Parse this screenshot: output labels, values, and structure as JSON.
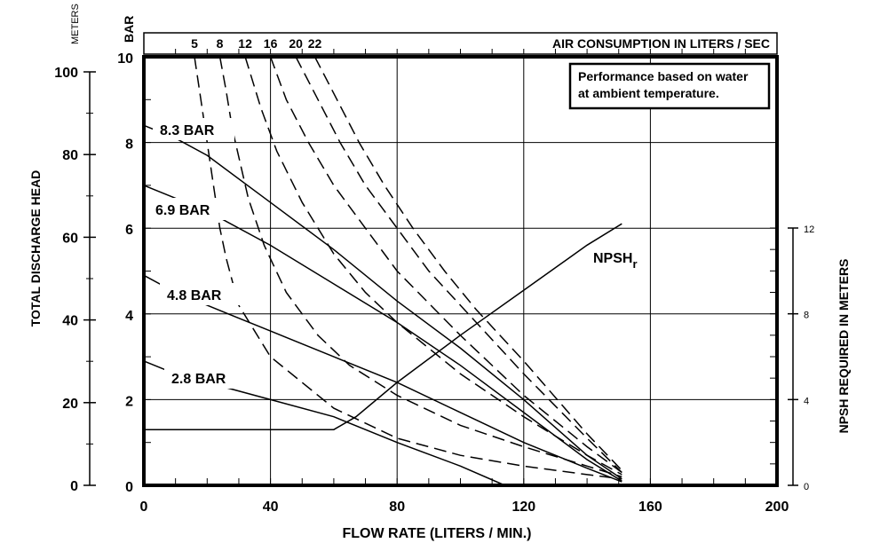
{
  "chart_data": {
    "type": "line",
    "title": "AIR CONSUMPTION IN LITERS / SEC",
    "note_lines": [
      "Performance based on water",
      "at ambient temperature."
    ],
    "xlabel": "FLOW RATE (LITERS / MIN.)",
    "xlim": [
      0,
      200
    ],
    "x_ticks": [
      0,
      40,
      80,
      120,
      160,
      200
    ],
    "y_bar": {
      "label": "BAR",
      "lim": [
        0,
        10
      ],
      "ticks": [
        0,
        2,
        4,
        6,
        8,
        10
      ]
    },
    "y_meters": {
      "unit_label": "METERS",
      "axis_label": "TOTAL DISCHARGE HEAD",
      "lim": [
        0,
        100
      ],
      "ticks": [
        0,
        20,
        40,
        60,
        80,
        100
      ]
    },
    "y_npsh": {
      "axis_label": "NPSH REQUIRED IN METERS",
      "lim": [
        0,
        12
      ],
      "ticks": [
        0,
        4,
        8,
        12
      ]
    },
    "air_top_ticks": [
      "5",
      "8",
      "12",
      "16",
      "20",
      "22"
    ],
    "pressure_series": [
      {
        "name": "8.3 BAR",
        "points": [
          [
            0,
            8.4
          ],
          [
            10,
            8.1
          ],
          [
            20,
            7.7
          ],
          [
            40,
            6.6
          ],
          [
            60,
            5.5
          ],
          [
            80,
            4.3
          ],
          [
            100,
            3.2
          ],
          [
            120,
            2.0
          ],
          [
            140,
            0.7
          ],
          [
            151,
            0.15
          ]
        ]
      },
      {
        "name": "6.9 BAR",
        "points": [
          [
            0,
            7.0
          ],
          [
            10,
            6.7
          ],
          [
            20,
            6.4
          ],
          [
            40,
            5.6
          ],
          [
            60,
            4.7
          ],
          [
            80,
            3.8
          ],
          [
            100,
            2.8
          ],
          [
            120,
            1.7
          ],
          [
            140,
            0.6
          ],
          [
            151,
            0.1
          ]
        ]
      },
      {
        "name": "4.8 BAR",
        "points": [
          [
            0,
            4.9
          ],
          [
            10,
            4.5
          ],
          [
            20,
            4.2
          ],
          [
            40,
            3.6
          ],
          [
            60,
            3.0
          ],
          [
            80,
            2.4
          ],
          [
            100,
            1.7
          ],
          [
            120,
            1.0
          ],
          [
            140,
            0.4
          ],
          [
            151,
            0.08
          ]
        ]
      },
      {
        "name": "2.8 BAR",
        "points": [
          [
            0,
            2.9
          ],
          [
            10,
            2.6
          ],
          [
            20,
            2.4
          ],
          [
            40,
            2.0
          ],
          [
            60,
            1.6
          ],
          [
            80,
            1.0
          ],
          [
            100,
            0.45
          ],
          [
            114,
            0.0
          ]
        ]
      }
    ],
    "air_consumption_series": [
      {
        "name": "5",
        "points": [
          [
            16,
            10.0
          ],
          [
            18,
            9.0
          ],
          [
            20,
            8.0
          ],
          [
            22,
            7.0
          ],
          [
            24,
            6.0
          ],
          [
            26,
            5.3
          ],
          [
            30,
            4.2
          ],
          [
            40,
            3.0
          ],
          [
            60,
            1.8
          ],
          [
            80,
            1.1
          ],
          [
            100,
            0.7
          ],
          [
            120,
            0.45
          ],
          [
            140,
            0.25
          ],
          [
            151,
            0.15
          ]
        ]
      },
      {
        "name": "8",
        "points": [
          [
            24,
            10.0
          ],
          [
            26,
            9.2
          ],
          [
            28,
            8.3
          ],
          [
            33,
            6.7
          ],
          [
            38,
            5.6
          ],
          [
            45,
            4.5
          ],
          [
            55,
            3.5
          ],
          [
            65,
            2.8
          ],
          [
            80,
            2.1
          ],
          [
            100,
            1.4
          ],
          [
            120,
            0.9
          ],
          [
            140,
            0.45
          ],
          [
            151,
            0.2
          ]
        ]
      },
      {
        "name": "12",
        "points": [
          [
            32,
            10.0
          ],
          [
            37,
            8.8
          ],
          [
            42,
            7.8
          ],
          [
            50,
            6.6
          ],
          [
            60,
            5.4
          ],
          [
            70,
            4.5
          ],
          [
            80,
            3.8
          ],
          [
            100,
            2.6
          ],
          [
            120,
            1.6
          ],
          [
            140,
            0.7
          ],
          [
            151,
            0.25
          ]
        ]
      },
      {
        "name": "16",
        "points": [
          [
            40,
            10.0
          ],
          [
            45,
            9.0
          ],
          [
            52,
            8.0
          ],
          [
            60,
            7.0
          ],
          [
            70,
            6.0
          ],
          [
            80,
            5.0
          ],
          [
            100,
            3.5
          ],
          [
            120,
            2.1
          ],
          [
            140,
            0.9
          ],
          [
            151,
            0.3
          ]
        ]
      },
      {
        "name": "20",
        "points": [
          [
            48,
            10.0
          ],
          [
            55,
            9.0
          ],
          [
            62,
            8.0
          ],
          [
            70,
            7.0
          ],
          [
            80,
            6.0
          ],
          [
            90,
            5.0
          ],
          [
            100,
            4.2
          ],
          [
            120,
            2.6
          ],
          [
            140,
            1.1
          ],
          [
            151,
            0.3
          ]
        ]
      },
      {
        "name": "22",
        "points": [
          [
            54,
            10.0
          ],
          [
            61,
            9.0
          ],
          [
            68,
            8.0
          ],
          [
            76,
            7.0
          ],
          [
            85,
            6.0
          ],
          [
            95,
            5.0
          ],
          [
            105,
            4.1
          ],
          [
            120,
            2.9
          ],
          [
            140,
            1.2
          ],
          [
            151,
            0.35
          ]
        ]
      }
    ],
    "npsh_series": {
      "name": "NPSHr",
      "label_main": "NPSH",
      "label_sub": "r",
      "points": [
        [
          0,
          2.6
        ],
        [
          60,
          2.6
        ],
        [
          67,
          3.2
        ],
        [
          80,
          4.8
        ],
        [
          100,
          7.0
        ],
        [
          120,
          9.1
        ],
        [
          140,
          11.2
        ],
        [
          151,
          12.2
        ]
      ]
    }
  }
}
